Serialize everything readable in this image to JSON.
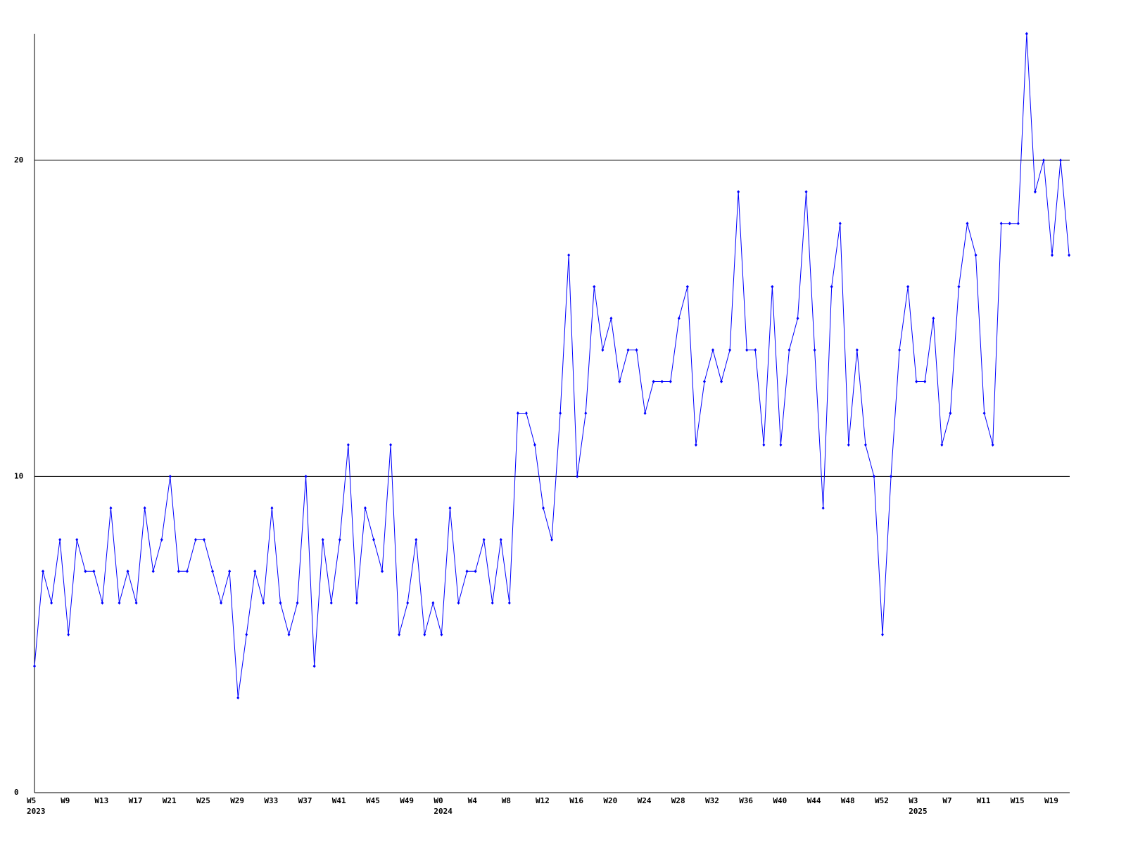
{
  "chart_data": {
    "type": "line",
    "categories": [
      "W5",
      null,
      null,
      null,
      "W9",
      null,
      null,
      null,
      "W13",
      null,
      null,
      null,
      "W17",
      null,
      null,
      null,
      "W21",
      null,
      null,
      null,
      "W25",
      null,
      null,
      null,
      "W29",
      null,
      null,
      null,
      "W33",
      null,
      null,
      null,
      "W37",
      null,
      null,
      null,
      "W41",
      null,
      null,
      null,
      "W45",
      null,
      null,
      null,
      "W49",
      null,
      null,
      null,
      "W0",
      null,
      null,
      null,
      "W4",
      null,
      null,
      null,
      "W8",
      null,
      null,
      null,
      "W12",
      null,
      null,
      null,
      "W16",
      null,
      null,
      null,
      "W20",
      null,
      null,
      null,
      "W24",
      null,
      null,
      null,
      "W28",
      null,
      null,
      null,
      "W32",
      null,
      null,
      null,
      "W36",
      null,
      null,
      null,
      "W40",
      null,
      null,
      null,
      "W44",
      null,
      null,
      null,
      "W48",
      null,
      null,
      null,
      "W52",
      null,
      null,
      null,
      "W3",
      null,
      null,
      null,
      "W7",
      null,
      null,
      null,
      "W11",
      null,
      null,
      null,
      "W15",
      null,
      null,
      null,
      "W19",
      null,
      null
    ],
    "year_labels": [
      "2023",
      "2024",
      "2025"
    ],
    "series": [
      {
        "color": "#0000ff",
        "values": [
          4,
          7,
          6,
          8,
          5,
          8,
          7,
          7,
          6,
          9,
          6,
          7,
          6,
          9,
          7,
          8,
          10,
          7,
          7,
          8,
          8,
          7,
          6,
          7,
          3,
          5,
          7,
          6,
          9,
          6,
          5,
          6,
          10,
          4,
          8,
          6,
          8,
          11,
          6,
          9,
          8,
          7,
          11,
          5,
          6,
          8,
          5,
          6,
          5,
          9,
          6,
          7,
          7,
          8,
          6,
          8,
          6,
          12,
          12,
          11,
          9,
          8,
          12,
          17,
          10,
          12,
          16,
          14,
          15,
          13,
          14,
          14,
          12,
          13,
          13,
          13,
          15,
          16,
          11,
          13,
          14,
          13,
          14,
          19,
          14,
          14,
          11,
          16,
          11,
          14,
          15,
          19,
          14,
          9,
          16,
          18,
          11,
          14,
          11,
          10,
          5,
          10,
          14,
          16,
          13,
          13,
          15,
          11,
          12,
          16,
          18,
          17,
          12,
          11,
          18,
          18,
          18,
          24,
          19,
          20,
          17,
          20,
          17
        ]
      }
    ],
    "ylim": [
      0,
      24
    ],
    "yticks": [
      0,
      10,
      20
    ],
    "grid": true
  }
}
